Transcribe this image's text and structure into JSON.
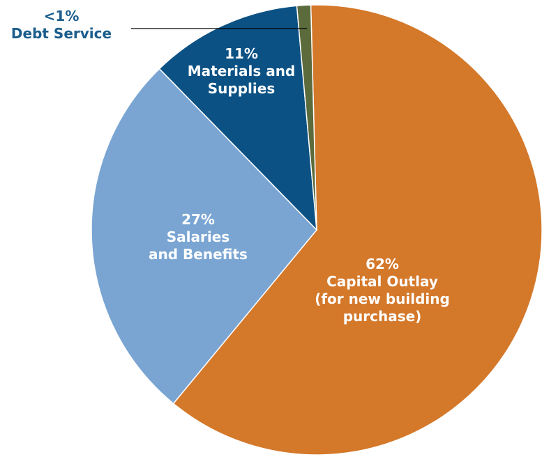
{
  "chart_data": {
    "type": "pie",
    "title": "",
    "slices": [
      {
        "value": 62,
        "pct_label": "62%",
        "label_lines": [
          "Capital Outlay",
          "(for new building",
          "purchase)"
        ],
        "color": "#d4782a"
      },
      {
        "value": 27,
        "pct_label": "27%",
        "label_lines": [
          "Salaries",
          "and Benefits"
        ],
        "color": "#7aa5d2"
      },
      {
        "value": 11,
        "pct_label": "11%",
        "label_lines": [
          "Materials and",
          "Supplies"
        ],
        "color": "#0b5184"
      },
      {
        "value": 1,
        "pct_label": "<1%",
        "label_lines": [
          "Debt Service"
        ],
        "color": "#5c6b3c"
      }
    ]
  }
}
